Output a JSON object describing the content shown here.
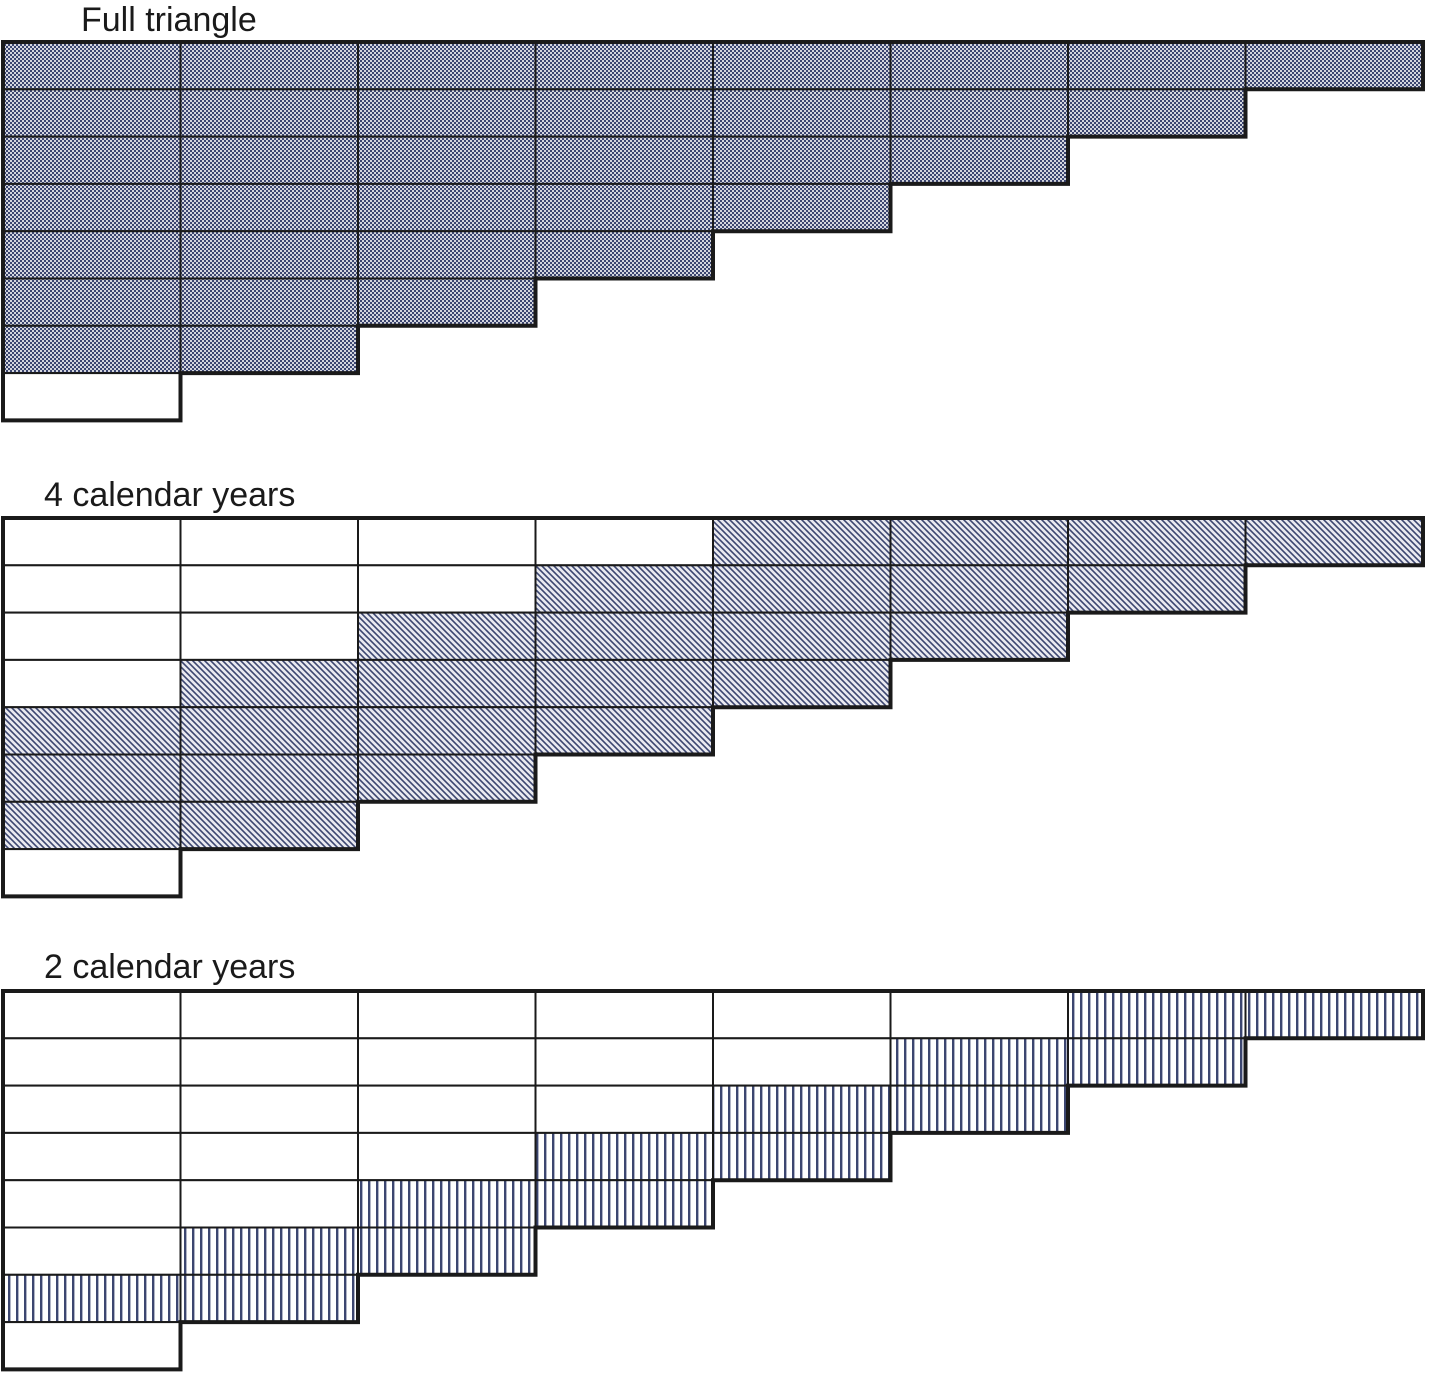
{
  "panels": [
    {
      "title": "Full triangle",
      "pattern": "dots",
      "calendar_years": null
    },
    {
      "title": "4 calendar years",
      "pattern": "diagonal",
      "calendar_years": 4
    },
    {
      "title": "2 calendar years",
      "pattern": "vertical",
      "calendar_years": 2
    }
  ],
  "triangle": {
    "rows": 8,
    "columns": 8,
    "row_lengths": [
      8,
      7,
      6,
      5,
      4,
      3,
      2,
      1
    ],
    "unshaded_last_row": true
  },
  "colors": {
    "outline": "#1a1a1a",
    "fill_base": "#d4d6de",
    "pattern_ink": "#3c4670"
  }
}
